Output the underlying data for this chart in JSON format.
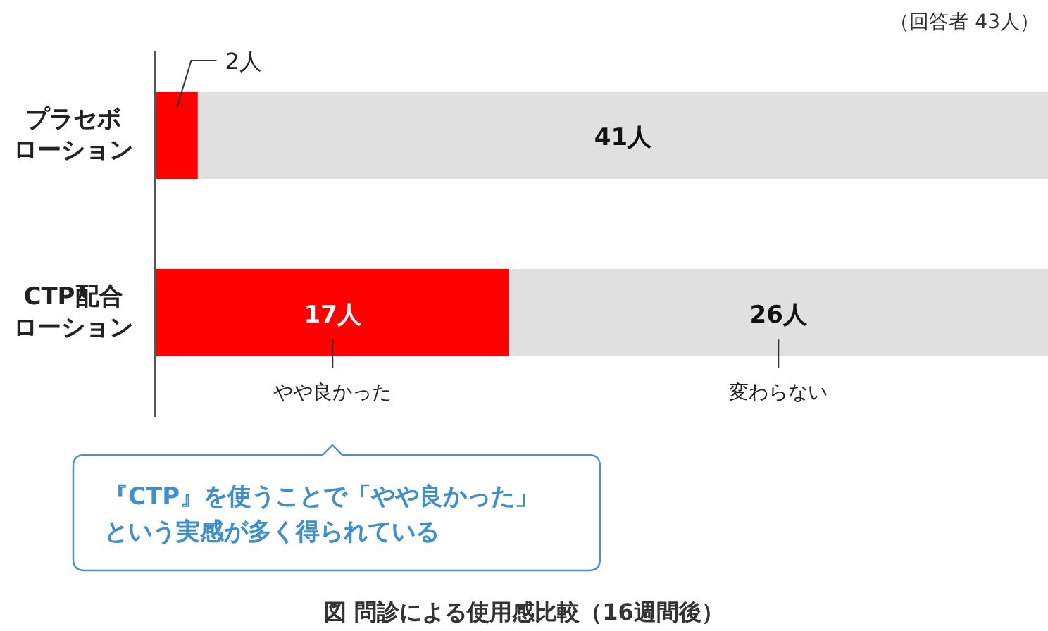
{
  "chart_data": {
    "type": "bar",
    "orientation": "horizontal",
    "stacked": true,
    "title": "図 問診による使用感比較（16週間後）",
    "categories": [
      "プラセボローション",
      "CTP配合ローション"
    ],
    "xlim": [
      0,
      43
    ],
    "tick_labels": "y",
    "series": [
      {
        "name": "やや良かった",
        "color": "#ff0000",
        "values": [
          2,
          17
        ],
        "value_labels": [
          "2人",
          "17人"
        ]
      },
      {
        "name": "変わらない",
        "color": "#e0e0e0",
        "values": [
          41,
          26
        ],
        "value_labels": [
          "41人",
          "26人"
        ]
      }
    ],
    "annotations": [
      "（回答者 43人）",
      "『CTP』を使うことで「やや良かった」という実感が多く得られている"
    ]
  }
}
